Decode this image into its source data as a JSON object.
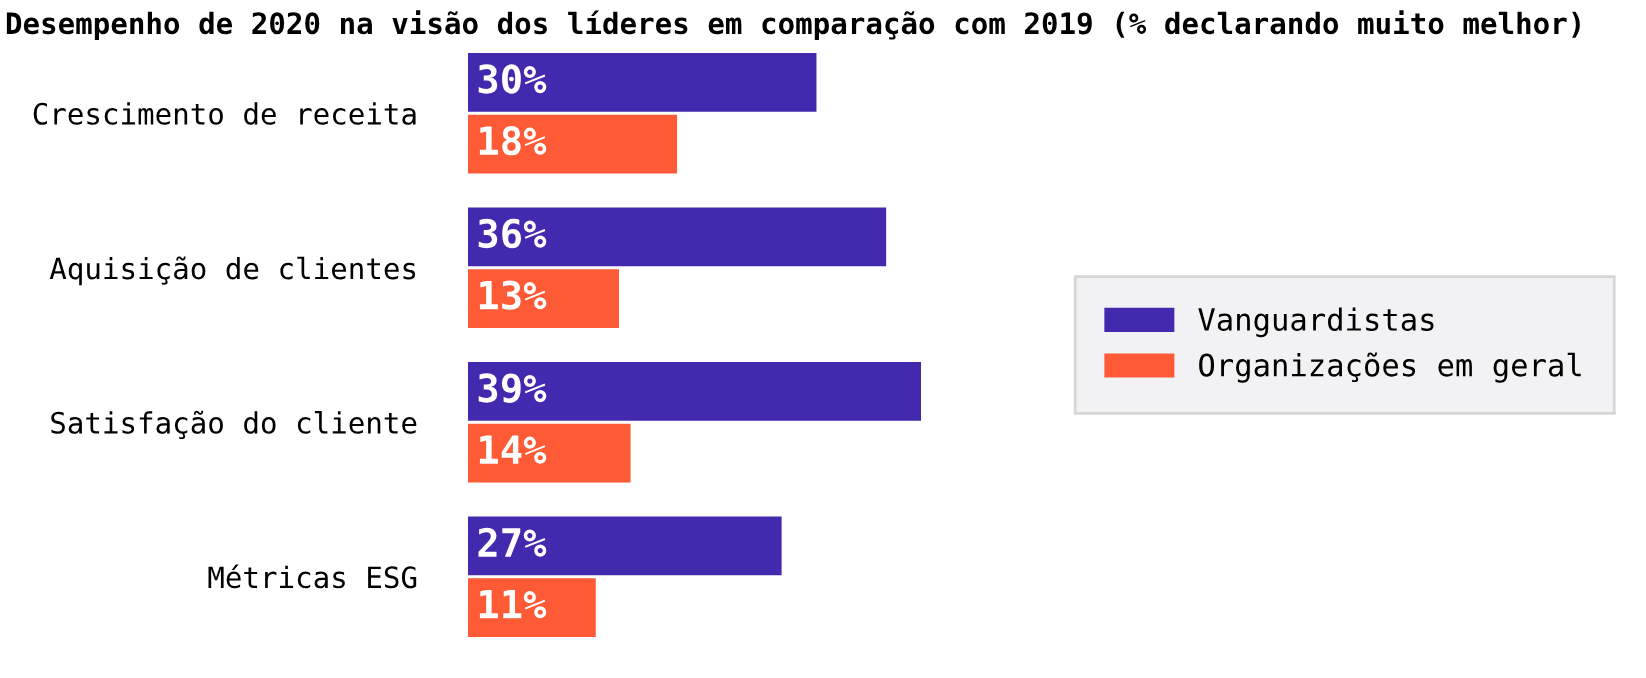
{
  "chart_data": {
    "type": "bar",
    "orientation": "horizontal",
    "title": "Desempenho de 2020 na visão dos líderes em comparação com 2019 (% declarando muito melhor)",
    "categories": [
      "Crescimento de receita",
      "Aquisição de clientes",
      "Satisfação do cliente",
      "Métricas ESG"
    ],
    "series": [
      {
        "name": "Vanguardistas",
        "color": "#4329ae",
        "values": [
          30,
          36,
          39,
          27
        ],
        "value_labels": [
          "30%",
          "36%",
          "39%",
          "27%"
        ]
      },
      {
        "name": "Organizações em geral",
        "color": "#ff5a36",
        "values": [
          18,
          13,
          14,
          11
        ],
        "value_labels": [
          "18%",
          "13%",
          "14%",
          "11%"
        ]
      }
    ],
    "legend": "right",
    "tick_labels": "y",
    "grid": false
  }
}
